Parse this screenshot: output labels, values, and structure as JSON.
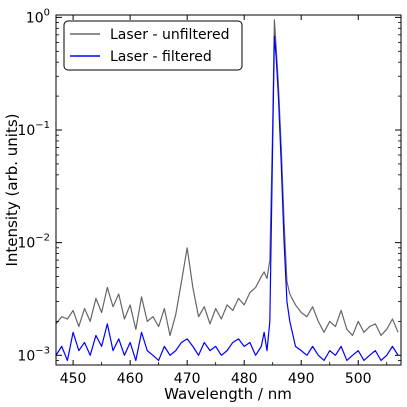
{
  "chart_data": {
    "type": "line",
    "xlabel": "Wavelength / nm",
    "ylabel": "Intensity (arb. units)",
    "xlim": [
      447,
      507.5
    ],
    "ylim": [
      0.00082,
      1.05
    ],
    "yscale": "log",
    "xticks": [
      450,
      460,
      470,
      480,
      490,
      500
    ],
    "yticks": [
      {
        "value": 0.001,
        "base": "10",
        "exp": "−3"
      },
      {
        "value": 0.01,
        "base": "10",
        "exp": "−2"
      },
      {
        "value": 0.1,
        "base": "10",
        "exp": "−1"
      },
      {
        "value": 1,
        "base": "10",
        "exp": "0"
      }
    ],
    "legend_position": "top-left",
    "series": [
      {
        "name": "Laser - unfiltered",
        "color": "#666666",
        "x": [
          447,
          448,
          449,
          450,
          451,
          452,
          453,
          454,
          455,
          456,
          457,
          458,
          459,
          460,
          461,
          462,
          463,
          464,
          465,
          466,
          467,
          468,
          469,
          470,
          471,
          472,
          473,
          474,
          475,
          476,
          477,
          478,
          479,
          480,
          481,
          482,
          483,
          483.5,
          484,
          484.5,
          485,
          485.3,
          485.6,
          486,
          486.5,
          487,
          487.5,
          488,
          489,
          490,
          491,
          492,
          493,
          494,
          495,
          496,
          497,
          498,
          499,
          500,
          501,
          502,
          503,
          504,
          505,
          506,
          507
        ],
        "y": [
          0.0019,
          0.0022,
          0.0021,
          0.0025,
          0.0018,
          0.0026,
          0.002,
          0.0032,
          0.0024,
          0.004,
          0.0027,
          0.0035,
          0.0021,
          0.0028,
          0.0017,
          0.0033,
          0.002,
          0.0022,
          0.0018,
          0.0026,
          0.0015,
          0.0023,
          0.0045,
          0.009,
          0.004,
          0.0022,
          0.0027,
          0.0019,
          0.0026,
          0.0021,
          0.0028,
          0.0025,
          0.0032,
          0.0028,
          0.0036,
          0.004,
          0.005,
          0.0055,
          0.0048,
          0.007,
          0.11,
          0.95,
          0.55,
          0.25,
          0.07,
          0.015,
          0.0045,
          0.0035,
          0.0028,
          0.0024,
          0.0022,
          0.0027,
          0.002,
          0.0016,
          0.002,
          0.0018,
          0.0025,
          0.0017,
          0.0015,
          0.002,
          0.0016,
          0.0018,
          0.0019,
          0.0015,
          0.0017,
          0.0021,
          0.0016
        ]
      },
      {
        "name": "Laser - filtered",
        "color": "#0000ff",
        "x": [
          447,
          448,
          449,
          450,
          451,
          452,
          453,
          454,
          455,
          456,
          457,
          458,
          459,
          460,
          461,
          462,
          463,
          464,
          465,
          466,
          467,
          468,
          469,
          470,
          471,
          472,
          473,
          474,
          475,
          476,
          477,
          478,
          479,
          480,
          481,
          482,
          483,
          483.5,
          484,
          484.5,
          485,
          485.3,
          485.6,
          486,
          486.5,
          487,
          487.5,
          488,
          489,
          490,
          491,
          492,
          493,
          494,
          495,
          496,
          497,
          498,
          499,
          500,
          501,
          502,
          503,
          504,
          505,
          506,
          507
        ],
        "y": [
          0.001,
          0.0012,
          0.0009,
          0.0016,
          0.0011,
          0.0013,
          0.001,
          0.0015,
          0.0012,
          0.0019,
          0.0011,
          0.0014,
          0.001,
          0.0013,
          0.0009,
          0.0016,
          0.0011,
          0.001,
          0.0009,
          0.0012,
          0.001,
          0.0011,
          0.0013,
          0.0014,
          0.0012,
          0.001,
          0.0013,
          0.0011,
          0.0012,
          0.001,
          0.0011,
          0.0013,
          0.0014,
          0.0012,
          0.0013,
          0.001,
          0.0012,
          0.0016,
          0.0011,
          0.002,
          0.08,
          0.68,
          0.45,
          0.2,
          0.05,
          0.01,
          0.003,
          0.002,
          0.0012,
          0.0011,
          0.001,
          0.0012,
          0.001,
          0.0009,
          0.0011,
          0.001,
          0.0012,
          0.0009,
          0.001,
          0.0011,
          0.0009,
          0.001,
          0.0011,
          0.0009,
          0.001,
          0.0012,
          0.001
        ]
      }
    ]
  }
}
